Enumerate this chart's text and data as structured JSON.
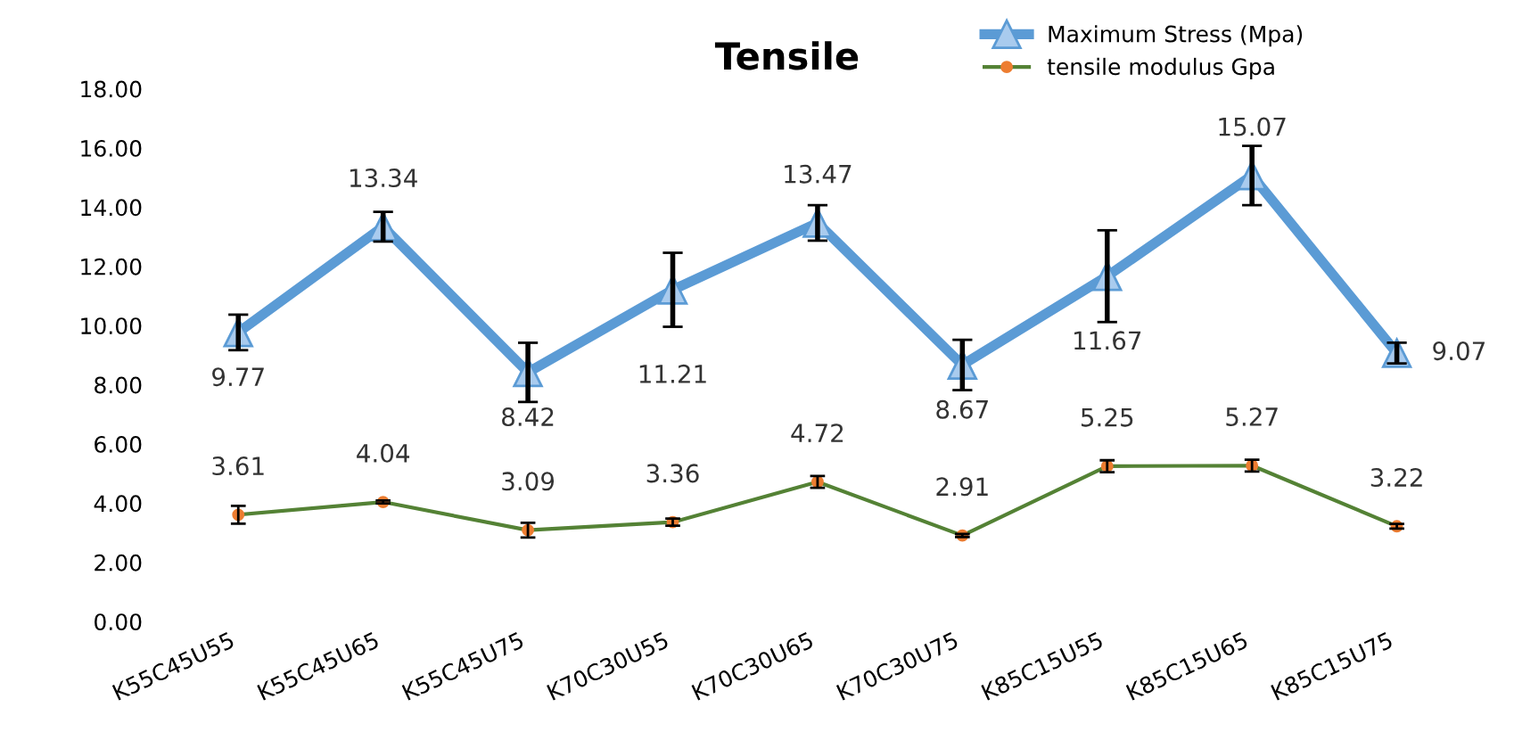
{
  "chart_data": {
    "type": "line",
    "title": "Tensile",
    "categories": [
      "K55C45U55",
      "K55C45U65",
      "K55C45U75",
      "K70C30U55",
      "K70C30U65",
      "K70C30U75",
      "K85C15U55",
      "K85C15U65",
      "K85C15U75"
    ],
    "series": [
      {
        "name": "Maximum Stress (Mpa)",
        "color": "#5b9bd5",
        "marker": "triangle",
        "values": [
          9.77,
          13.34,
          8.42,
          11.21,
          13.47,
          8.67,
          11.67,
          15.07,
          9.07
        ],
        "errors": [
          0.6,
          0.5,
          1.0,
          1.25,
          0.6,
          0.85,
          1.55,
          1.0,
          0.35
        ]
      },
      {
        "name": "tensile modulus Gpa",
        "color": "#548235",
        "marker": "circle",
        "values": [
          3.61,
          4.04,
          3.09,
          3.36,
          4.72,
          2.91,
          5.25,
          5.27,
          3.22
        ],
        "errors": [
          0.3,
          0.05,
          0.25,
          0.12,
          0.2,
          0.05,
          0.2,
          0.2,
          0.08
        ]
      }
    ],
    "ylim": [
      0,
      18
    ],
    "yticks": [
      {
        "value": 0,
        "label": "0.00"
      },
      {
        "value": 2,
        "label": "2.00"
      },
      {
        "value": 4,
        "label": "4.00"
      },
      {
        "value": 6,
        "label": "6.00"
      },
      {
        "value": 8,
        "label": "8.00"
      },
      {
        "value": 10,
        "label": "10.00"
      },
      {
        "value": 12,
        "label": "12.00"
      },
      {
        "value": 14,
        "label": "14.00"
      },
      {
        "value": 16,
        "label": "16.00"
      },
      {
        "value": 18,
        "label": "18.00"
      }
    ],
    "grid": false,
    "legend": "top right",
    "data_labels": true
  }
}
